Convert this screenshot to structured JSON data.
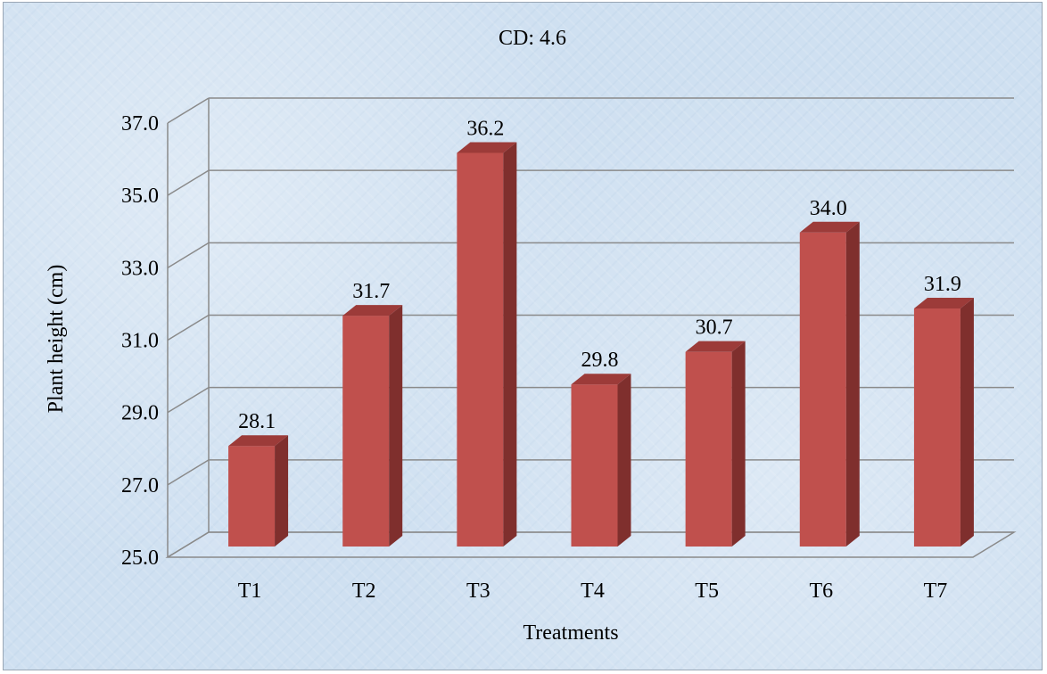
{
  "chart_data": {
    "type": "bar",
    "title": "CD: 4.6",
    "xlabel": "Treatments",
    "ylabel": "Plant height (cm)",
    "categories": [
      "T1",
      "T2",
      "T3",
      "T4",
      "T5",
      "T6",
      "T7"
    ],
    "values": [
      28.1,
      31.7,
      36.2,
      29.8,
      30.7,
      34.0,
      31.9
    ],
    "value_labels": [
      "28.1",
      "31.7",
      "36.2",
      "29.8",
      "30.7",
      "34.0",
      "31.9"
    ],
    "ylim": [
      25.0,
      37.0
    ],
    "yticks": [
      "25.0",
      "27.0",
      "29.0",
      "31.0",
      "33.0",
      "35.0",
      "37.0"
    ],
    "grid": true,
    "style": "3d-column",
    "colors": {
      "bar_front": "#c0504d",
      "bar_side": "#7f2f2d",
      "bar_top": "#9c3b39",
      "grid": "#8a8a8a",
      "background": "#cfe0f1"
    }
  }
}
